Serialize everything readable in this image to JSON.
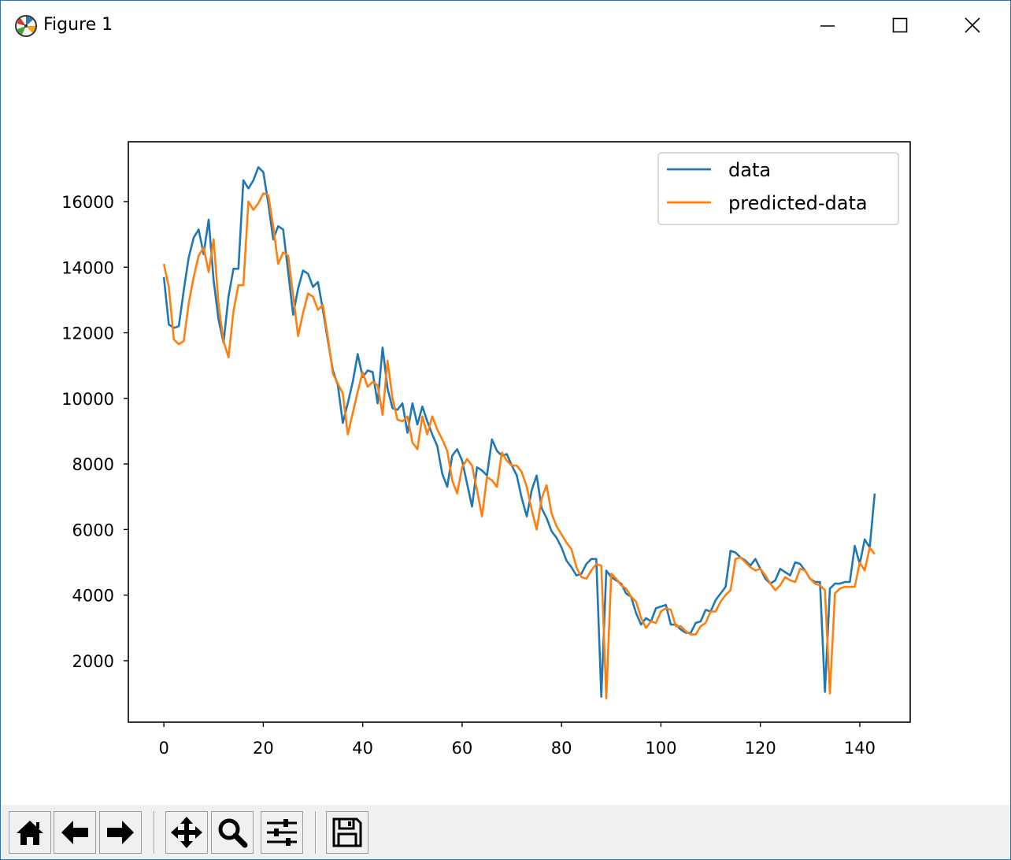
{
  "window": {
    "title": "Figure 1",
    "buttons": {
      "minimize": "minimize",
      "maximize": "maximize",
      "close": "close"
    }
  },
  "toolbar": {
    "items": [
      {
        "name": "home-button",
        "icon": "home-icon"
      },
      {
        "name": "back-button",
        "icon": "arrow-left-icon"
      },
      {
        "name": "forward-button",
        "icon": "arrow-right-icon"
      },
      {
        "name": "pan-button",
        "icon": "move-icon"
      },
      {
        "name": "zoom-button",
        "icon": "magnifier-icon"
      },
      {
        "name": "configure-subplots-button",
        "icon": "sliders-icon"
      },
      {
        "name": "save-button",
        "icon": "floppy-icon"
      }
    ]
  },
  "chart_data": {
    "type": "line",
    "title": "",
    "xlabel": "",
    "ylabel": "",
    "xlim": [
      -7.15,
      150.15
    ],
    "ylim": [
      125,
      17825
    ],
    "xticks": [
      0,
      20,
      40,
      60,
      80,
      100,
      120,
      140
    ],
    "yticks": [
      2000,
      4000,
      6000,
      8000,
      10000,
      12000,
      14000,
      16000
    ],
    "legend_position": "upper-right",
    "grid": false,
    "colors": {
      "data": "#1f77b4",
      "predicted-data": "#ff7f0e"
    },
    "series": [
      {
        "name": "data",
        "x": [
          0,
          1,
          2,
          3,
          4,
          5,
          6,
          7,
          8,
          9,
          10,
          11,
          12,
          13,
          14,
          15,
          16,
          17,
          18,
          19,
          20,
          21,
          22,
          23,
          24,
          25,
          26,
          27,
          28,
          29,
          30,
          31,
          32,
          33,
          34,
          35,
          36,
          37,
          38,
          39,
          40,
          41,
          42,
          43,
          44,
          45,
          46,
          47,
          48,
          49,
          50,
          51,
          52,
          53,
          54,
          55,
          56,
          57,
          58,
          59,
          60,
          61,
          62,
          63,
          64,
          65,
          66,
          67,
          68,
          69,
          70,
          71,
          72,
          73,
          74,
          75,
          76,
          77,
          78,
          79,
          80,
          81,
          82,
          83,
          84,
          85,
          86,
          87,
          88,
          89,
          90,
          91,
          92,
          93,
          94,
          95,
          96,
          97,
          98,
          99,
          100,
          101,
          102,
          103,
          104,
          105,
          106,
          107,
          108,
          109,
          110,
          111,
          112,
          113,
          114,
          115,
          116,
          117,
          118,
          119,
          120,
          121,
          122,
          123,
          124,
          125,
          126,
          127,
          128,
          129,
          130,
          131,
          132,
          133,
          134,
          135,
          136,
          137,
          138,
          139,
          140,
          141,
          142,
          143
        ],
        "y": [
          13700,
          12250,
          12150,
          12200,
          13300,
          14300,
          14900,
          15150,
          14400,
          15450,
          13600,
          12400,
          11700,
          13100,
          13950,
          13950,
          16650,
          16400,
          16650,
          17050,
          16900,
          15950,
          14850,
          15250,
          15150,
          13850,
          12550,
          13350,
          13900,
          13800,
          13400,
          13550,
          12700,
          11750,
          10850,
          10400,
          9250,
          9850,
          10500,
          11350,
          10650,
          10850,
          10800,
          9850,
          11550,
          10300,
          9700,
          9650,
          9850,
          8950,
          9850,
          9200,
          9750,
          9300,
          8900,
          8550,
          7700,
          7300,
          8250,
          8450,
          8100,
          7400,
          6700,
          7900,
          7800,
          7650,
          8750,
          8400,
          8250,
          8300,
          7950,
          7650,
          6950,
          6400,
          7200,
          7650,
          6650,
          6350,
          5950,
          5750,
          5450,
          5050,
          4850,
          4600,
          4650,
          4950,
          5100,
          5100,
          900,
          4750,
          4550,
          4450,
          4350,
          4050,
          3950,
          3450,
          3100,
          3300,
          3200,
          3600,
          3650,
          3700,
          3100,
          3100,
          2950,
          2850,
          2850,
          3150,
          3200,
          3550,
          3500,
          3850,
          4050,
          4250,
          5350,
          5300,
          5150,
          5050,
          4900,
          5100,
          4800,
          4500,
          4350,
          4450,
          4800,
          4700,
          4600,
          5000,
          4950,
          4750,
          4500,
          4400,
          4400,
          1050,
          4200,
          4350,
          4350,
          4400,
          4400,
          5500,
          4950,
          5700,
          5450,
          7100
        ]
      },
      {
        "name": "predicted-data",
        "x": [
          0,
          1,
          2,
          3,
          4,
          5,
          6,
          7,
          8,
          9,
          10,
          11,
          12,
          13,
          14,
          15,
          16,
          17,
          18,
          19,
          20,
          21,
          22,
          23,
          24,
          25,
          26,
          27,
          28,
          29,
          30,
          31,
          32,
          33,
          34,
          35,
          36,
          37,
          38,
          39,
          40,
          41,
          42,
          43,
          44,
          45,
          46,
          47,
          48,
          49,
          50,
          51,
          52,
          53,
          54,
          55,
          56,
          57,
          58,
          59,
          60,
          61,
          62,
          63,
          64,
          65,
          66,
          67,
          68,
          69,
          70,
          71,
          72,
          73,
          74,
          75,
          76,
          77,
          78,
          79,
          80,
          81,
          82,
          83,
          84,
          85,
          86,
          87,
          88,
          89,
          90,
          91,
          92,
          93,
          94,
          95,
          96,
          97,
          98,
          99,
          100,
          101,
          102,
          103,
          104,
          105,
          106,
          107,
          108,
          109,
          110,
          111,
          112,
          113,
          114,
          115,
          116,
          117,
          118,
          119,
          120,
          121,
          122,
          123,
          124,
          125,
          126,
          127,
          128,
          129,
          130,
          131,
          132,
          133,
          134,
          135,
          136,
          137,
          138,
          139,
          140,
          141,
          142,
          143
        ],
        "y": [
          14100,
          13400,
          11800,
          11650,
          11750,
          12900,
          13700,
          14350,
          14600,
          13850,
          14850,
          12850,
          11750,
          11250,
          12650,
          13450,
          13450,
          16000,
          15750,
          15950,
          16250,
          16200,
          15250,
          14100,
          14450,
          14350,
          13150,
          11900,
          12600,
          13200,
          13100,
          12700,
          12850,
          11850,
          10750,
          10450,
          10150,
          8900,
          9550,
          10200,
          10800,
          10350,
          10500,
          10400,
          9500,
          11150,
          10000,
          9350,
          9300,
          9450,
          8650,
          8450,
          9450,
          8900,
          9450,
          9050,
          8750,
          8400,
          7500,
          7100,
          7900,
          8150,
          7950,
          7200,
          6400,
          7600,
          7500,
          7300,
          8350,
          8100,
          7950,
          7950,
          7750,
          7300,
          6600,
          6000,
          6950,
          7350,
          6500,
          6100,
          5850,
          5600,
          5400,
          4850,
          4550,
          4500,
          4750,
          4950,
          4900,
          850,
          4650,
          4500,
          4300,
          4200,
          3950,
          3800,
          3300,
          3000,
          3200,
          3150,
          3500,
          3600,
          3550,
          3050,
          3050,
          2900,
          2800,
          2800,
          3050,
          3150,
          3500,
          3500,
          3800,
          4000,
          4150,
          5100,
          5150,
          5000,
          4850,
          4750,
          4800,
          4600,
          4350,
          4150,
          4300,
          4550,
          4450,
          4400,
          4800,
          4750,
          4500,
          4350,
          4300,
          4150,
          1000,
          4050,
          4200,
          4250,
          4250,
          4250,
          5000,
          4750,
          5450,
          5250
        ]
      }
    ]
  }
}
